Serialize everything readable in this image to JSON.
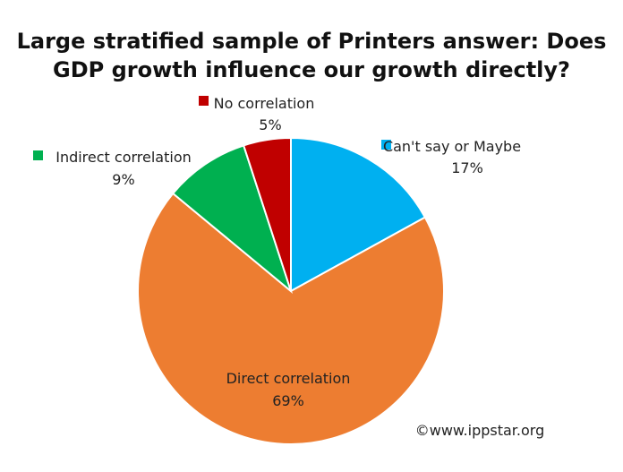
{
  "chart_data": {
    "type": "pie",
    "title": "Large stratified sample of Printers answer: Does GDP growth influence our growth directly?",
    "title_lines": [
      "Large stratified sample of Printers answer: Does",
      "GDP growth influence our growth directly?"
    ],
    "start_angle_deg": 0,
    "direction": "clockwise",
    "slices": [
      {
        "name": "Can't say or Maybe",
        "value": 17,
        "label_value": "17%",
        "color": "#00B0F0"
      },
      {
        "name": "Direct correlation",
        "value": 69,
        "label_value": "69%",
        "color": "#ED7D31"
      },
      {
        "name": "Indirect correlation",
        "value": 9,
        "label_value": "9%",
        "color": "#00B050"
      },
      {
        "name": "No correlation",
        "value": 5,
        "label_value": "5%",
        "color": "#C00000"
      }
    ]
  },
  "copyright": "©www.ippstar.org"
}
